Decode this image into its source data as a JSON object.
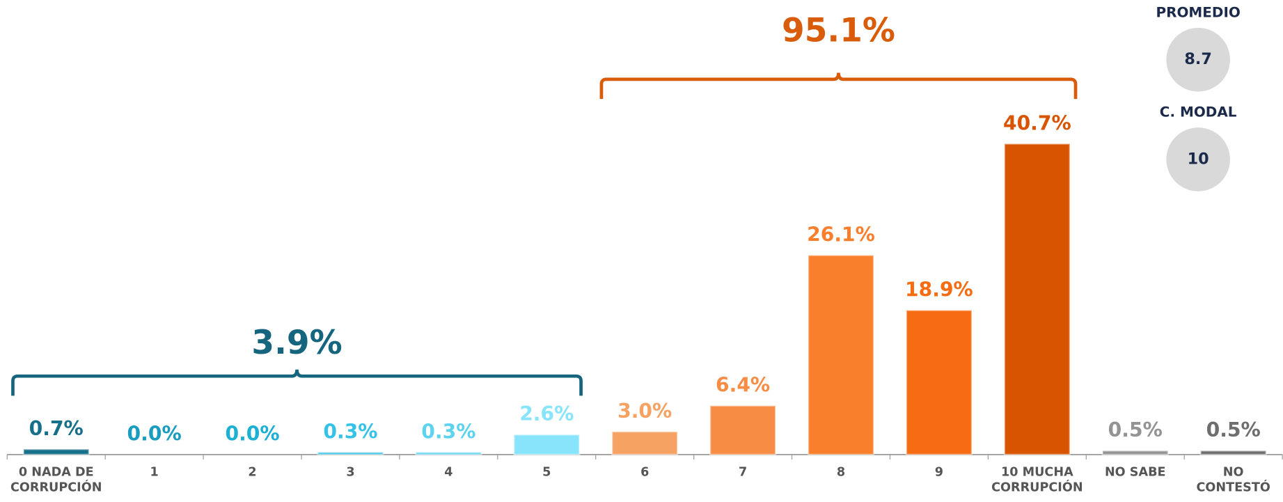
{
  "chart_data": {
    "type": "bar",
    "categories": [
      "0 NADA DE CORRUPCIÓN",
      "1",
      "2",
      "3",
      "4",
      "5",
      "6",
      "7",
      "8",
      "9",
      "10 MUCHA CORRUPCIÓN",
      "NO SABE",
      "NO CONTESTÓ"
    ],
    "values": [
      0.7,
      0.0,
      0.0,
      0.3,
      0.3,
      2.6,
      3.0,
      6.4,
      26.1,
      18.9,
      40.7,
      0.5,
      0.5
    ],
    "value_labels": [
      "0.7%",
      "0.0%",
      "0.0%",
      "0.3%",
      "0.3%",
      "2.6%",
      "3.0%",
      "6.4%",
      "26.1%",
      "18.9%",
      "40.7%",
      "0.5%",
      "0.5%"
    ],
    "colors": [
      "#17708a",
      "#1a9cc0",
      "#1cb0d2",
      "#36c2e6",
      "#5dd3ef",
      "#88e4fb",
      "#f6a262",
      "#f78d44",
      "#f97f2c",
      "#f66c12",
      "#d95400",
      "#939393",
      "#6e6e6e"
    ],
    "annotations": [
      {
        "text": "3.9%",
        "color": "#15657f"
      },
      {
        "text": "95.1%",
        "color": "#d95c0a"
      }
    ],
    "stats": [
      {
        "label": "PROMEDIO",
        "value": "8.7"
      },
      {
        "label": "C. MODAL",
        "value": "10"
      }
    ]
  }
}
